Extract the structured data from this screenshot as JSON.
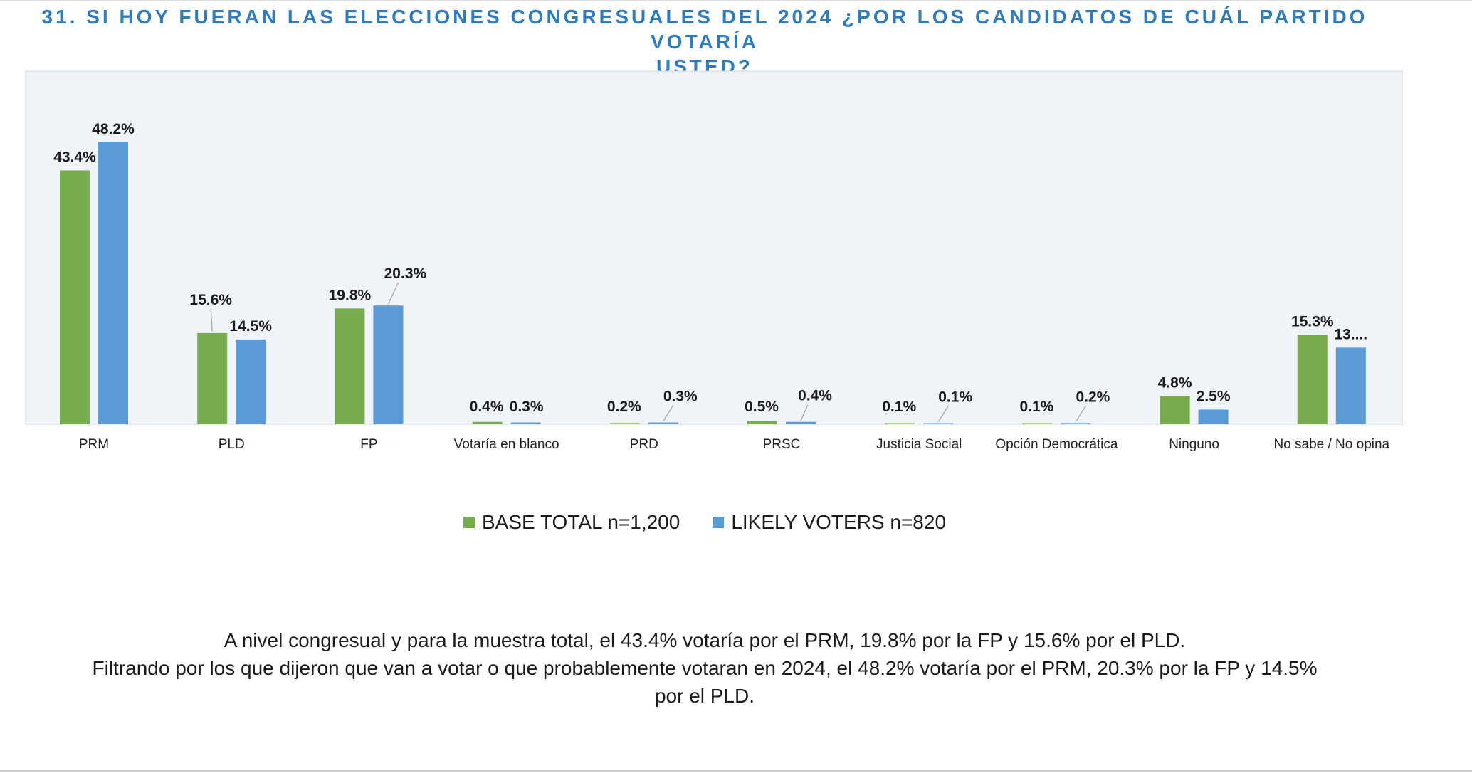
{
  "title": {
    "line1": "31.  SI HOY FUERAN LAS ELECCIONES CONGRESUALES DEL 2024  ¿POR LOS CANDIDATOS DE CUÁL PARTIDO VOTARÍA",
    "line2": "USTED?"
  },
  "chart_data": {
    "type": "bar",
    "categories": [
      "PRM",
      "PLD",
      "FP",
      "Votaría en blanco",
      "PRD",
      "PRSC",
      "Justicia Social",
      "Opción Democrática",
      "Ninguno",
      "No sabe / No opina"
    ],
    "series": [
      {
        "name": "BASE TOTAL n=1,200",
        "color": "#76ac4b",
        "values": [
          43.4,
          15.6,
          19.8,
          0.4,
          0.2,
          0.5,
          0.1,
          0.1,
          4.8,
          15.3
        ],
        "labels": [
          "43.4%",
          "15.6%",
          "19.8%",
          "0.4%",
          "0.2%",
          "0.5%",
          "0.1%",
          "0.1%",
          "4.8%",
          "15.3%"
        ]
      },
      {
        "name": "LIKELY VOTERS n=820",
        "color": "#5b9bd5",
        "values": [
          48.2,
          14.5,
          20.3,
          0.3,
          0.3,
          0.4,
          0.1,
          0.2,
          2.5,
          13.1
        ],
        "labels": [
          "48.2%",
          "14.5%",
          "20.3%",
          "0.3%",
          "0.3%",
          "0.4%",
          "0.1%",
          "0.2%",
          "2.5%",
          "13...."
        ]
      }
    ],
    "ylim": [
      0,
      55
    ],
    "grid": false,
    "legend": "bottom",
    "plot_background": "#f0f3f8"
  },
  "legend": {
    "items": [
      {
        "label": "BASE TOTAL n=1,200",
        "color": "#76ac4b"
      },
      {
        "label": "LIKELY VOTERS n=820",
        "color": "#5b9bd5"
      }
    ]
  },
  "footnote": {
    "line1": "A nivel congresual y para la muestra total, el 43.4% votaría por el PRM, 19.8% por la FP y 15.6% por el PLD.",
    "line2": "Filtrando por los que dijeron que van a votar o que probablemente votaran en 2024, el 48.2% votaría por el PRM, 20.3% por la FP y 14.5%",
    "line3": "por el PLD."
  }
}
